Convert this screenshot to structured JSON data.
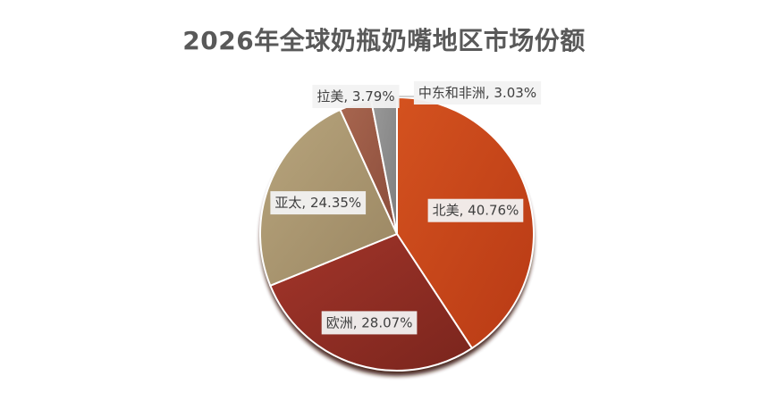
{
  "chart_data": {
    "type": "pie",
    "title": "2026年全球奶瓶奶嘴地区市场份额",
    "categories": [
      "北美",
      "欧洲",
      "亚太",
      "拉美",
      "中东和非洲"
    ],
    "values": [
      40.76,
      28.07,
      24.35,
      3.79,
      3.03
    ],
    "labels": [
      "北美, 40.76%",
      "欧洲, 28.07%",
      "亚太, 24.35%",
      "拉美, 3.79%",
      "中东和非洲, 3.03%"
    ],
    "colors": [
      "#c9441a",
      "#8e2d22",
      "#a8956e",
      "#9a5a47",
      "#8c8c8c"
    ],
    "legend": "none"
  }
}
